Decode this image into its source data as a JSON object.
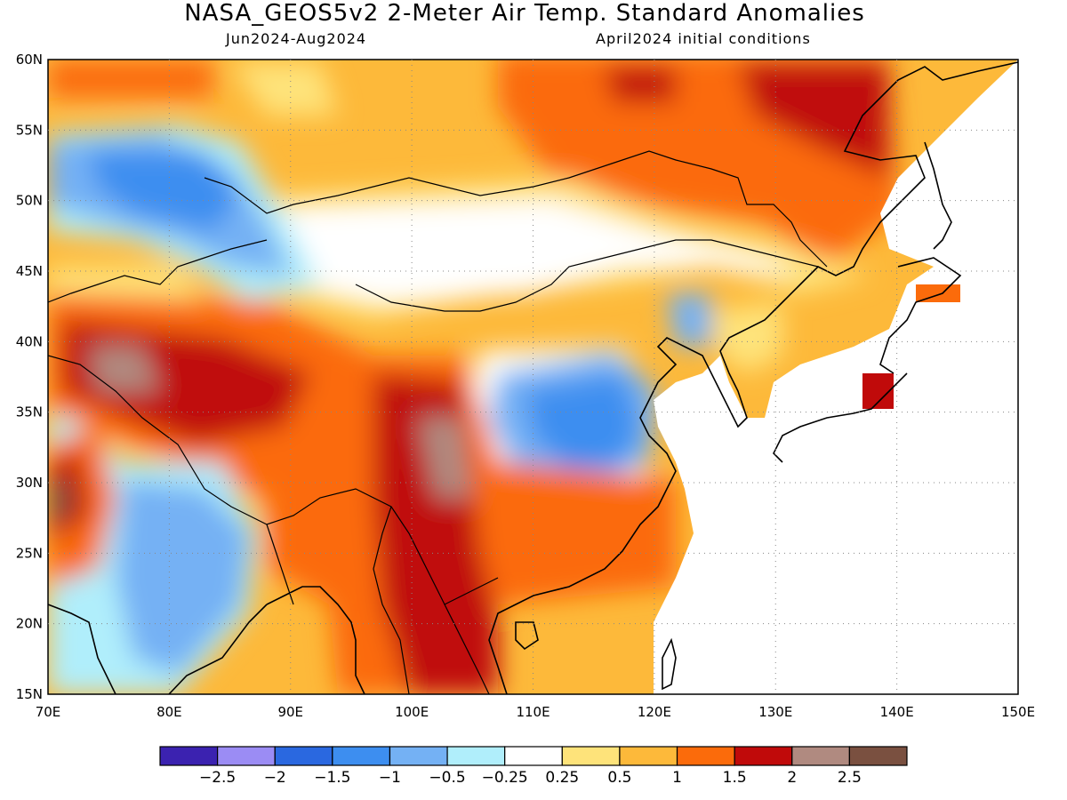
{
  "title": "NASA_GEOS5v2 2-Meter Air Temp. Standard Anomalies",
  "subtitle_left": "Jun2024-Aug2024",
  "subtitle_right": "April2024 initial conditions",
  "map": {
    "lon_range": [
      70,
      150
    ],
    "lat_range": [
      15,
      60
    ],
    "lon_ticks": [
      "70E",
      "80E",
      "90E",
      "100E",
      "110E",
      "120E",
      "130E",
      "140E",
      "150E"
    ],
    "lat_ticks": [
      "60N",
      "55N",
      "50N",
      "45N",
      "40N",
      "35N",
      "30N",
      "25N",
      "20N",
      "15N"
    ],
    "gridlines": "dotted"
  },
  "colorbar": {
    "colors": [
      "#3b22b0",
      "#9b8cf4",
      "#2a68e0",
      "#3d8ef0",
      "#74b1f4",
      "#b0eefb",
      "#ffffff",
      "#fee37a",
      "#fdb93a",
      "#fb6b0b",
      "#c00a0a",
      "#b08a80",
      "#7a5040"
    ],
    "labels": [
      "-2.5",
      "-2",
      "-1.5",
      "-1",
      "-0.5",
      "-0.25",
      "0.25",
      "0.5",
      "1",
      "1.5",
      "2",
      "2.5"
    ]
  }
}
